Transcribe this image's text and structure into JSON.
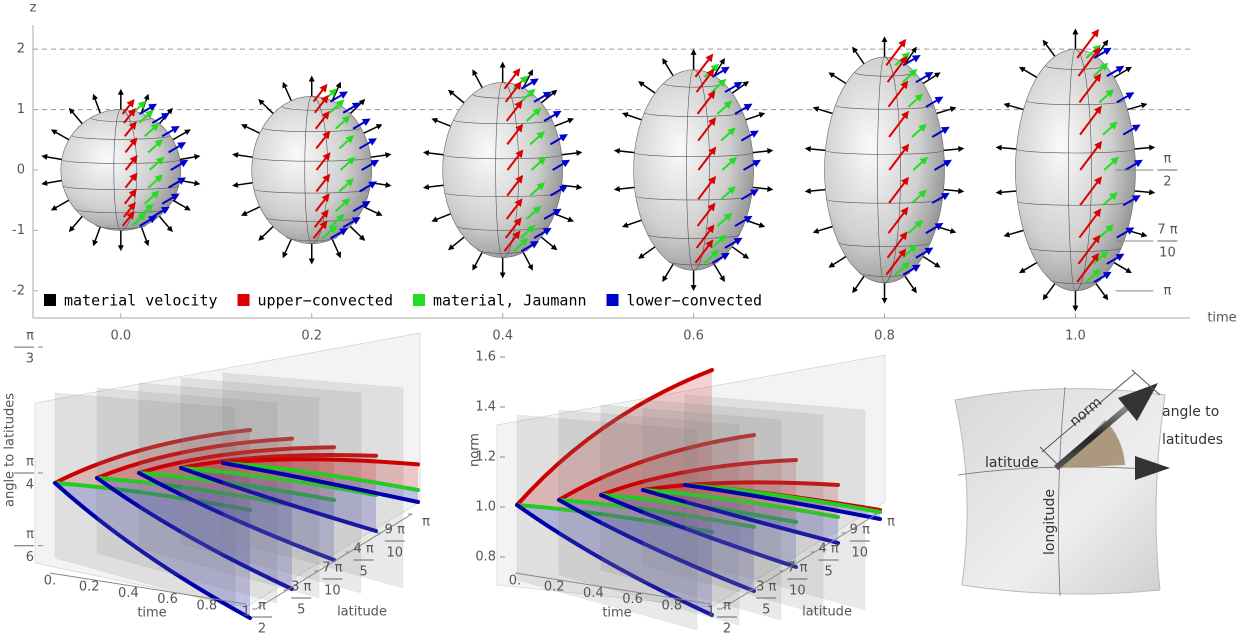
{
  "chart_data": [
    {
      "type": "ellipsoids",
      "x_label": "time",
      "y_label": "z",
      "x": [
        0,
        0.2,
        0.4,
        0.6,
        0.8,
        1
      ],
      "values": [
        1,
        1.22,
        1.45,
        1.66,
        1.87,
        2
      ],
      "xlim": [
        -0.092,
        1.12
      ],
      "ylim": [
        -2.45,
        2.4
      ],
      "xticks": [
        {
          "value": 0,
          "label": "0.0"
        },
        {
          "value": 0.2,
          "label": "0.2"
        },
        {
          "value": 0.4,
          "label": "0.4"
        },
        {
          "value": 0.6,
          "label": "0.6"
        },
        {
          "value": 0.8,
          "label": "0.8"
        },
        {
          "value": 1,
          "label": "1.0"
        }
      ],
      "yticks": [
        -2,
        -1,
        0,
        1,
        2
      ],
      "dashed_lines": [
        1,
        2
      ],
      "legend": [
        {
          "name": "material velocity",
          "color": "#000000"
        },
        {
          "name": "upper−convected",
          "color": "#dd0000"
        },
        {
          "name": "material, Jaumann",
          "color": "#22dd22"
        },
        {
          "name": "lower−convected",
          "color": "#0000cc"
        }
      ],
      "latitude_labels": [
        {
          "value": 1.5708,
          "num": "π",
          "den": "2"
        },
        {
          "value": 2.1991,
          "num": "7 π",
          "den": "10"
        },
        {
          "value": 3.1416,
          "num": "π"
        }
      ]
    },
    {
      "type": "surface3d",
      "x_label": "time",
      "y_label": "angle to latitudes",
      "z_label": "latitude",
      "scale": "tan",
      "xlim": [
        0,
        1
      ],
      "zlim": [
        1.5708,
        3.1416
      ],
      "xticks": [
        {
          "value": 0,
          "label": "0."
        },
        0.2,
        0.4,
        0.6,
        0.8,
        1
      ],
      "yticks": [
        {
          "value": 1.0472,
          "num": "π",
          "den": "3"
        },
        {
          "value": 0.7854,
          "num": "π",
          "den": "4"
        },
        {
          "value": 0.5236,
          "num": "π",
          "den": "6"
        }
      ],
      "zticks": [
        {
          "value": 1.5708,
          "num": "π",
          "den": "2"
        },
        {
          "value": 1.885,
          "num": "3 π",
          "den": "5"
        },
        {
          "value": 2.1991,
          "num": "7 π",
          "den": "10"
        },
        {
          "value": 2.5133,
          "num": "4 π",
          "den": "5"
        },
        {
          "value": 2.8274,
          "num": "9 π",
          "den": "10"
        },
        {
          "value": 3.1416,
          "num": "π"
        }
      ],
      "colors": [
        "#cc0000",
        "#22cc22",
        "#0000aa"
      ]
    },
    {
      "type": "surface3d",
      "x_label": "time",
      "y_label": "norm",
      "z_label": "latitude",
      "scale": "linear",
      "xlim": [
        0,
        1
      ],
      "zlim": [
        1.5708,
        3.1416
      ],
      "xticks": [
        {
          "value": 0,
          "label": "0."
        },
        0.2,
        0.4,
        0.6,
        0.8,
        1
      ],
      "yticks": [
        0.8,
        {
          "value": 1,
          "label": "1.0"
        },
        1.2,
        1.4,
        1.6
      ],
      "zticks": [
        {
          "value": 1.5708,
          "num": "π",
          "den": "2"
        },
        {
          "value": 1.885,
          "num": "3 π",
          "den": "5"
        },
        {
          "value": 2.1991,
          "num": "7 π",
          "den": "10"
        },
        {
          "value": 2.5133,
          "num": "4 π",
          "den": "5"
        },
        {
          "value": 2.8274,
          "num": "9 π",
          "den": "10"
        },
        {
          "value": 3.1416,
          "num": "π"
        }
      ],
      "colors": [
        "#cc0000",
        "#22cc22",
        "#0000aa"
      ]
    }
  ],
  "diagram": {
    "norm": "norm",
    "angle": [
      "angle to",
      "latitudes"
    ],
    "latitude": "latitude",
    "longitude": "longitude"
  }
}
